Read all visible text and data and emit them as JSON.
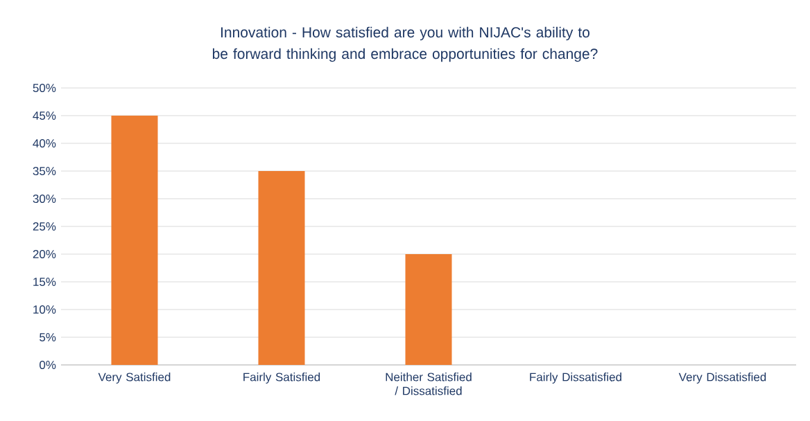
{
  "chart_data": {
    "type": "bar",
    "title": "Innovation - How satisfied are you with NIJAC's ability to be forward thinking and embrace opportunities for change?",
    "categories": [
      "Very Satisfied",
      "Fairly Satisfied",
      "Neither Satisfied / Dissatisfied",
      "Fairly Dissatisfied",
      "Very Dissatisfied"
    ],
    "values": [
      45,
      35,
      20,
      0,
      0
    ],
    "color": "#ed7d31",
    "ylim": [
      0,
      50
    ],
    "yticks": [
      {
        "value": 0,
        "label": "0%"
      },
      {
        "value": 5,
        "label": "5%"
      },
      {
        "value": 10,
        "label": "10%"
      },
      {
        "value": 15,
        "label": "15%"
      },
      {
        "value": 20,
        "label": "20%"
      },
      {
        "value": 25,
        "label": "25%"
      },
      {
        "value": 30,
        "label": "30%"
      },
      {
        "value": 35,
        "label": "35%"
      },
      {
        "value": 40,
        "label": "40%"
      },
      {
        "value": 45,
        "label": "45%"
      },
      {
        "value": 50,
        "label": "50%"
      }
    ],
    "grid": true
  }
}
